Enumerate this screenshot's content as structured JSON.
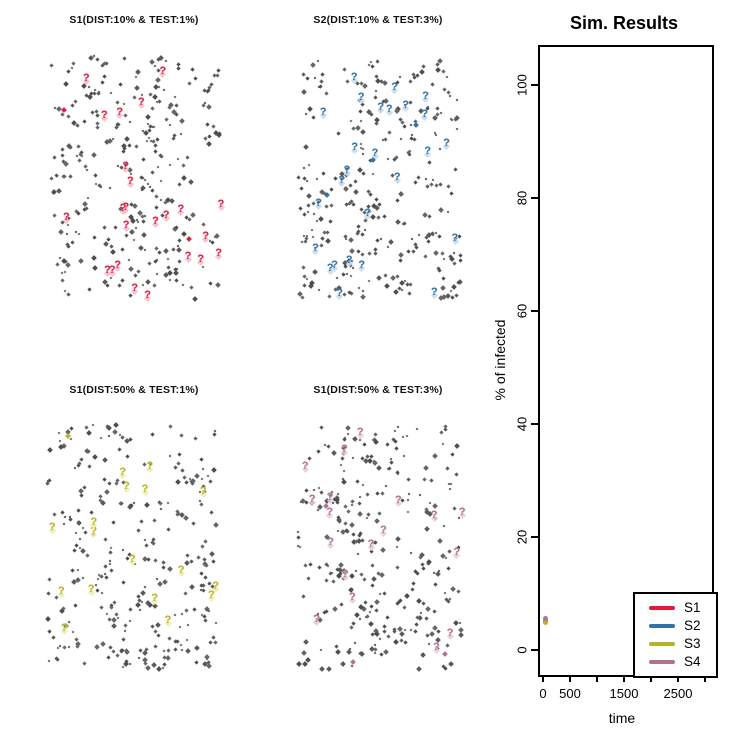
{
  "figure": {
    "agent_color": "#5a5a5a",
    "agent_shades": [
      "#4e4e4e",
      "#5a5a5a",
      "#666666"
    ],
    "panels": [
      {
        "title": "S1(DIST:10% & TEST:1%)",
        "series": "S1",
        "accent": "#e8173f",
        "accent_light": "#f7b9c6",
        "agents": 300,
        "query_marks": 24,
        "infected_dots": 2,
        "seed": 101
      },
      {
        "title": "S2(DIST:10% & TEST:3%)",
        "series": "S2",
        "accent": "#3173a3",
        "accent_light": "#bfd9ec",
        "agents": 300,
        "query_marks": 26,
        "infected_dots": 3,
        "seed": 202
      },
      {
        "title": "S1(DIST:50% & TEST:1%)",
        "series": "S3",
        "accent": "#b5b327",
        "accent_light": "#eeeca6",
        "agents": 300,
        "query_marks": 17,
        "infected_dots": 1,
        "seed": 303
      },
      {
        "title": "S1(DIST:50% & TEST:3%)",
        "series": "S4",
        "accent": "#b0718f",
        "accent_light": "#e6cbd9",
        "agents": 300,
        "query_marks": 18,
        "infected_dots": 3,
        "seed": 404
      }
    ]
  },
  "chart_data": {
    "type": "scatter",
    "title": "Sim. Results",
    "xlabel": "time",
    "ylabel": "% of infected",
    "xlim": [
      0,
      3130
    ],
    "ylim": [
      -5,
      108
    ],
    "x_ticks": [
      0,
      500,
      1000,
      1500,
      2000,
      2500,
      3000
    ],
    "x_tick_labels": [
      "0",
      "500",
      "",
      "1500",
      "",
      "2500",
      ""
    ],
    "y_ticks": [
      0,
      20,
      40,
      60,
      80,
      100
    ],
    "y_tick_labels": [
      "0",
      "20",
      "40",
      "60",
      "80",
      "100"
    ],
    "grid": false,
    "legend_position": "bottom-right",
    "series": [
      {
        "name": "S1",
        "color": "#e8173f",
        "points": [
          [
            0,
            5.0
          ]
        ]
      },
      {
        "name": "S2",
        "color": "#3173a3",
        "points": [
          [
            0,
            5.0
          ]
        ]
      },
      {
        "name": "S3",
        "color": "#b5b327",
        "points": [
          [
            0,
            4.8
          ]
        ]
      },
      {
        "name": "S4",
        "color": "#b0718f",
        "points": [
          [
            0,
            5.6
          ]
        ]
      }
    ]
  }
}
